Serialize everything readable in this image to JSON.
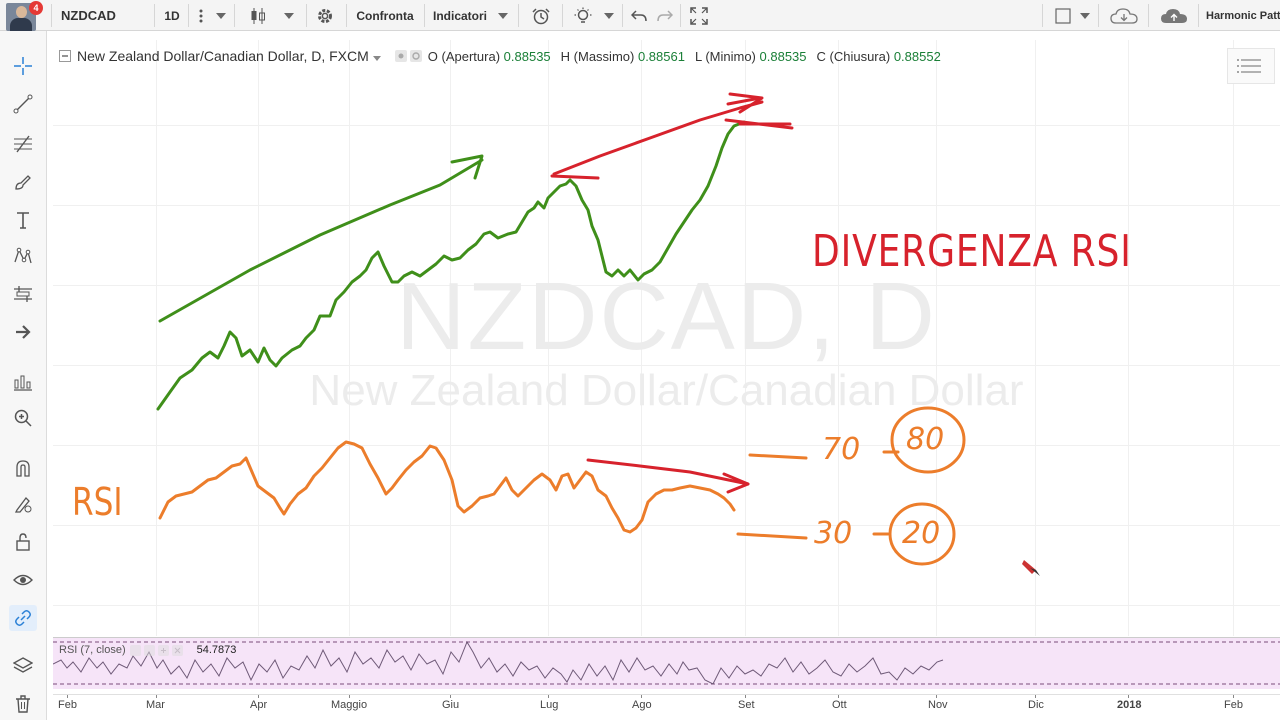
{
  "toolbar": {
    "notification_count": "4",
    "symbol": "NZDCAD",
    "interval": "1D",
    "compare_label": "Confronta",
    "indicators_label": "Indicatori",
    "brand": "Harmonic Patt"
  },
  "legend": {
    "title": "New Zealand Dollar/Canadian Dollar, D, FXCM",
    "open_label": "O (Apertura)",
    "open_value": "0.88535",
    "high_label": "H (Massimo)",
    "high_value": "0.88561",
    "low_label": "L (Minimo)",
    "low_value": "0.88535",
    "close_label": "C (Chiusura)",
    "close_value": "0.88552"
  },
  "watermark": {
    "symbol": "NZDCAD, D",
    "name": "New Zealand Dollar/Canadian Dollar"
  },
  "annotations": {
    "divergence": "DIVERGENZA RSI",
    "rsi": "RSI",
    "level_70": "70",
    "level_80": "80",
    "level_30": "30",
    "level_20": "20"
  },
  "rsi_pane": {
    "label": "RSI (7, close)",
    "value": "54.7873"
  },
  "time_axis": {
    "labels": [
      "Feb",
      "Mar",
      "Apr",
      "Maggio",
      "Giu",
      "Lug",
      "Ago",
      "Set",
      "Ott",
      "Nov",
      "Dic",
      "2018",
      "Feb"
    ]
  },
  "colors": {
    "price_drawing": "#3f8f1a",
    "divergence_drawing": "#d7222c",
    "rsi_drawing": "#ec7d2b",
    "rsi_band": "#f6e4f8",
    "rsi_line": "#6f5a78"
  },
  "icons": {
    "left_toolbar": [
      "crosshair-icon",
      "trendline-icon",
      "fib-icon",
      "brush-icon",
      "text-icon",
      "pattern-icon",
      "measure-icon",
      "arrow-icon",
      "forecast-icon",
      "zoom-icon",
      "magnet-icon",
      "stay-drawing-icon",
      "lock-icon",
      "eye-icon",
      "link-icon",
      "layers-icon",
      "trash-icon"
    ]
  }
}
